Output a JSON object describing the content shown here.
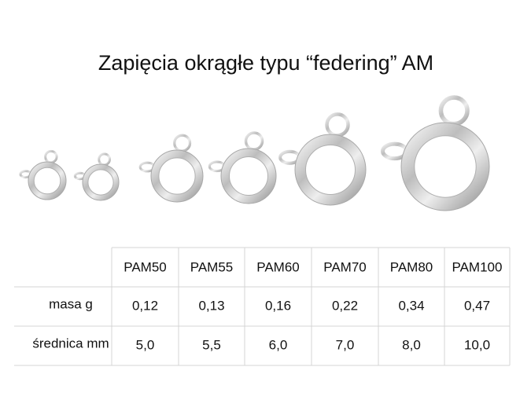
{
  "header": {
    "title": "Zapięcia okrągłe typu “federing” AM"
  },
  "table": {
    "columns": [
      "PAM50",
      "PAM55",
      "PAM60",
      "PAM70",
      "PAM80",
      "PAM100"
    ],
    "rows": [
      {
        "label": "masa g",
        "cells": [
          "0,12",
          "0,13",
          "0,16",
          "0,22",
          "0,34",
          "0,47"
        ]
      },
      {
        "label": "średnica mm",
        "cells": [
          "5,0",
          "5,5",
          "6,0",
          "7,0",
          "8,0",
          "10,0"
        ]
      }
    ]
  }
}
